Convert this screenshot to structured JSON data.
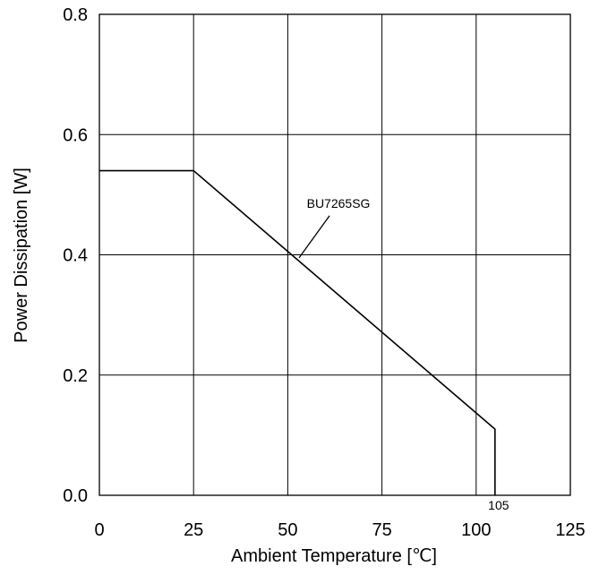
{
  "chart_data": {
    "type": "line",
    "title": "",
    "xlabel": "Ambient Temperature [℃]",
    "ylabel": "Power Dissipation [W]",
    "xlim": [
      0,
      125
    ],
    "ylim": [
      0,
      0.8
    ],
    "xticks": [
      0,
      25,
      50,
      75,
      100,
      125
    ],
    "xtick_labels": [
      "0",
      "25",
      "50",
      "75",
      "100",
      "125"
    ],
    "yticks": [
      0,
      0.2,
      0.4,
      0.6,
      0.8
    ],
    "ytick_labels": [
      "0.0",
      "0.2",
      "0.4",
      "0.6",
      "0.8"
    ],
    "grid": true,
    "series": [
      {
        "name": "BU7265SG",
        "x": [
          0,
          25,
          105,
          105
        ],
        "y": [
          0.54,
          0.54,
          0.11,
          0
        ]
      }
    ],
    "annotations": [
      {
        "text": "BU7265SG",
        "target_x": 53,
        "target_y": 0.395
      },
      {
        "text": "105",
        "x": 105,
        "y": 0
      }
    ],
    "colors": {
      "line": "#000000",
      "grid": "#000000",
      "background": "#ffffff"
    }
  }
}
